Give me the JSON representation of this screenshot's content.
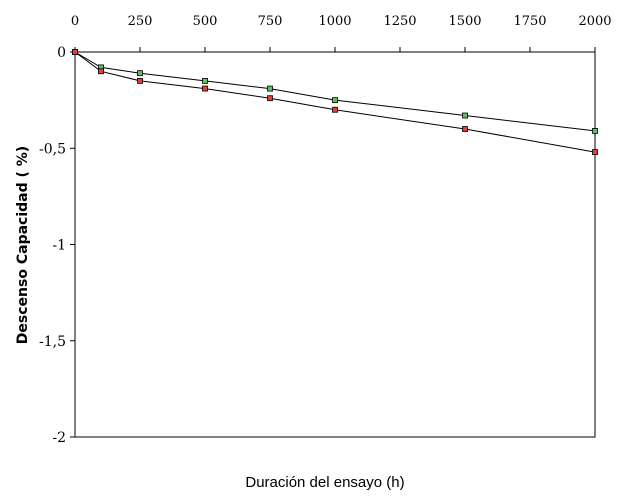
{
  "chart_data": {
    "type": "line",
    "xlabel": "Duración del ensayo  (h)",
    "ylabel": "Descenso Capacidad  ( %)",
    "xlim": [
      0,
      2000
    ],
    "ylim": [
      -2,
      0
    ],
    "x_ticks": [
      0,
      250,
      500,
      750,
      1000,
      1250,
      1500,
      1750,
      2000
    ],
    "x_tick_labels": [
      "0",
      "250",
      "500",
      "750",
      "1000",
      "1250",
      "1500",
      "1750",
      "2000"
    ],
    "y_ticks": [
      0,
      -0.5,
      -1,
      -1.5,
      -2
    ],
    "y_tick_labels": [
      "0",
      "-0,5",
      "-1",
      "-1,5",
      "-2"
    ],
    "x_axis_position": "top",
    "grid": false,
    "series": [
      {
        "color": "#5cc45c",
        "x": [
          0,
          100,
          250,
          500,
          750,
          1000,
          1500,
          2000
        ],
        "y": [
          0,
          -0.08,
          -0.11,
          -0.15,
          -0.19,
          -0.25,
          -0.33,
          -0.41
        ]
      },
      {
        "color": "#e0413a",
        "x": [
          0,
          100,
          250,
          500,
          750,
          1000,
          1500,
          2000
        ],
        "y": [
          0,
          -0.1,
          -0.15,
          -0.19,
          -0.24,
          -0.3,
          -0.4,
          -0.52
        ]
      }
    ]
  }
}
